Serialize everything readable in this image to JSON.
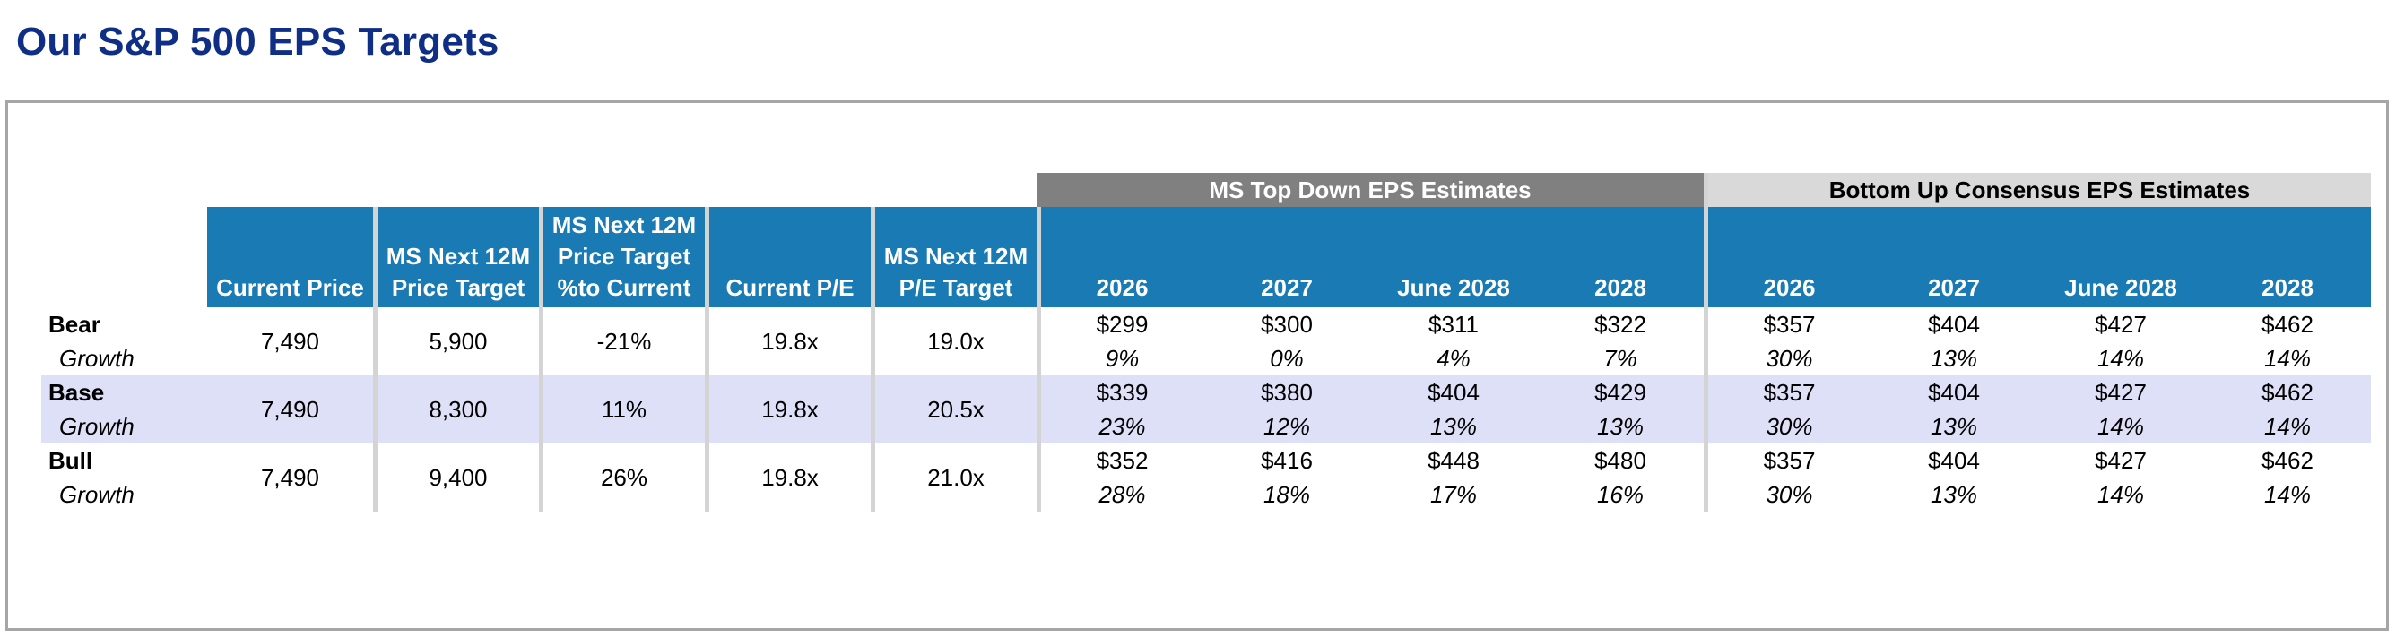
{
  "title": "Our S&P 500 EPS Targets",
  "groups": {
    "ms_top_down": "MS Top Down EPS Estimates",
    "bottom_up": "Bottom Up Consensus EPS Estimates"
  },
  "columns": {
    "current_price": "Current Price",
    "price_target_l1": "MS Next 12M",
    "price_target_l2": "Price Target",
    "pct_l1": "MS Next 12M",
    "pct_l2": "Price Target",
    "pct_l3": "%to Current",
    "current_pe": "Current P/E",
    "pe_target_l1": "MS Next 12M",
    "pe_target_l2": "P/E Target",
    "years": [
      "2026",
      "2027",
      "June 2028",
      "2028"
    ]
  },
  "growth_label": "Growth",
  "rows": [
    {
      "scenario": "Bear",
      "current_price": "7,490",
      "price_target": "5,900",
      "pct_to_current": "-21%",
      "current_pe": "19.8x",
      "pe_target": "19.0x",
      "ms_eps": [
        "$299",
        "$300",
        "$311",
        "$322"
      ],
      "ms_growth": [
        "9%",
        "0%",
        "4%",
        "7%"
      ],
      "bu_eps": [
        "$357",
        "$404",
        "$427",
        "$462"
      ],
      "bu_growth": [
        "30%",
        "13%",
        "14%",
        "14%"
      ]
    },
    {
      "scenario": "Base",
      "current_price": "7,490",
      "price_target": "8,300",
      "pct_to_current": "11%",
      "current_pe": "19.8x",
      "pe_target": "20.5x",
      "ms_eps": [
        "$339",
        "$380",
        "$404",
        "$429"
      ],
      "ms_growth": [
        "23%",
        "12%",
        "13%",
        "13%"
      ],
      "bu_eps": [
        "$357",
        "$404",
        "$427",
        "$462"
      ],
      "bu_growth": [
        "30%",
        "13%",
        "14%",
        "14%"
      ]
    },
    {
      "scenario": "Bull",
      "current_price": "7,490",
      "price_target": "9,400",
      "pct_to_current": "26%",
      "current_pe": "19.8x",
      "pe_target": "21.0x",
      "ms_eps": [
        "$352",
        "$416",
        "$448",
        "$480"
      ],
      "ms_growth": [
        "28%",
        "18%",
        "17%",
        "16%"
      ],
      "bu_eps": [
        "$357",
        "$404",
        "$427",
        "$462"
      ],
      "bu_growth": [
        "30%",
        "13%",
        "14%",
        "14%"
      ]
    }
  ],
  "colors": {
    "title": "#0f2f86",
    "header_bg": "#1a7ab3",
    "ms_group_bg": "#808080",
    "bu_group_bg": "#d9d9d9",
    "base_row_bg": "#dde0f7",
    "frame_border": "#a6a6a6"
  }
}
